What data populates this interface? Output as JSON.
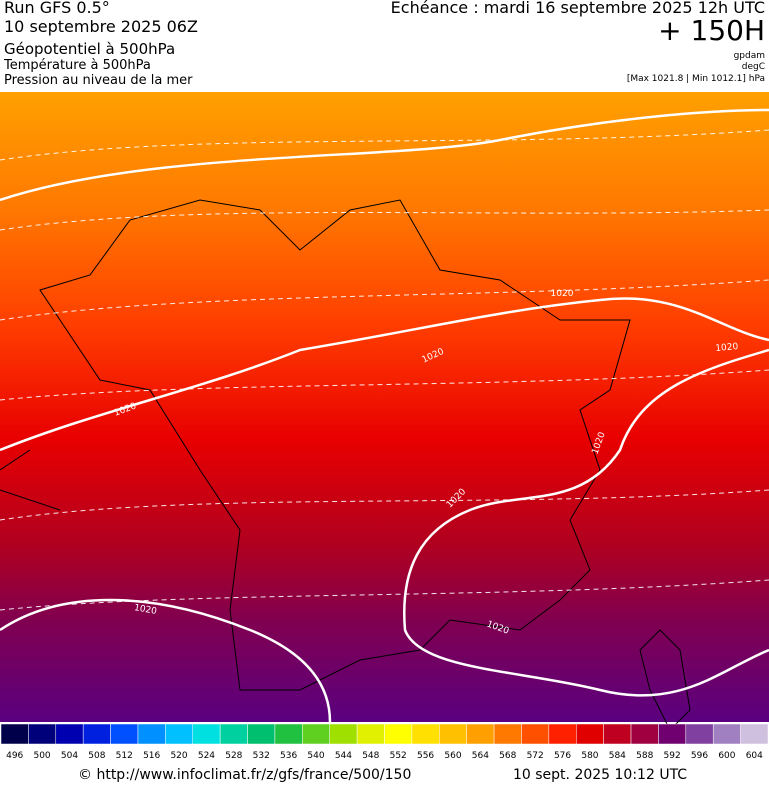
{
  "header": {
    "run": "Run GFS 0.5°",
    "run_date": "10 septembre 2025 06Z",
    "title": "Géopotentiel à 500hPa",
    "subtitle_1": "Température à 500hPa",
    "subtitle_2": "Pression au niveau de la mer",
    "forecast": "Echéance : mardi 16 septembre 2025 12h UTC",
    "lead_time": "+ 150H",
    "unit_1": "gpdam",
    "unit_2": "degC",
    "pressure_range": "[Max 1021.8 | Min 1012.1] hPa"
  },
  "map": {
    "isobar_labels": [
      "1020",
      "1020",
      "1020",
      "1020",
      "1020",
      "1020",
      "1020",
      "1020"
    ]
  },
  "colorbar": {
    "values": [
      496,
      500,
      504,
      508,
      512,
      516,
      520,
      524,
      528,
      532,
      536,
      540,
      544,
      548,
      552,
      556,
      560,
      564,
      568,
      572,
      576,
      580,
      584,
      588,
      592,
      596,
      600,
      604
    ],
    "colors": [
      "#00004a",
      "#00007a",
      "#0000b0",
      "#0020e0",
      "#0050ff",
      "#0090ff",
      "#00c0ff",
      "#00e0e0",
      "#00d0a0",
      "#00c070",
      "#20c040",
      "#60d020",
      "#a0e000",
      "#e0f000",
      "#ffff00",
      "#ffe000",
      "#ffc000",
      "#ffa000",
      "#ff7800",
      "#ff5000",
      "#ff2000",
      "#e00000",
      "#c00020",
      "#a00040",
      "#700070",
      "#8040a0",
      "#a080c0",
      "#d0c0e0"
    ]
  },
  "footer": {
    "source": "© http://www.infoclimat.fr/z/gfs/france/500/150",
    "timestamp": "10 sept. 2025 10:12 UTC"
  }
}
